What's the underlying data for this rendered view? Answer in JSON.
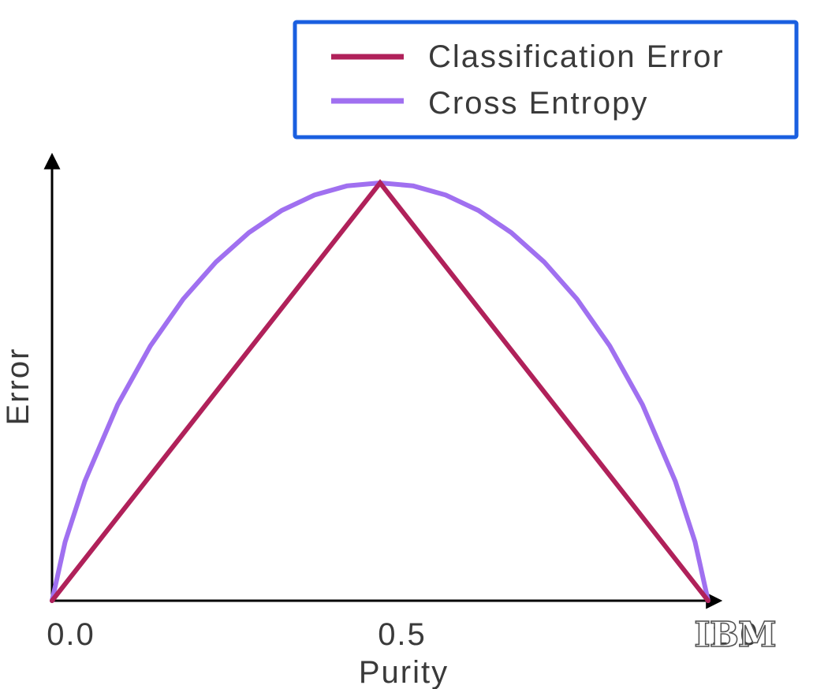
{
  "chart_data": {
    "type": "line",
    "title": "",
    "xlabel": "Purity",
    "ylabel": "Error",
    "xlim": [
      0,
      1
    ],
    "ylim": [
      0,
      1.08
    ],
    "x_ticks": [
      "0.0",
      "0.5",
      "1.0"
    ],
    "grid": false,
    "legend_position": "top-right",
    "series": [
      {
        "name": "Classification Error",
        "color": "#b0215a",
        "x": [
          0.0,
          0.5,
          1.0
        ],
        "y": [
          0.0,
          1.0,
          0.0
        ]
      },
      {
        "name": "Cross Entropy",
        "color": "#a070f0",
        "x": [
          0.0,
          0.02,
          0.05,
          0.1,
          0.15,
          0.2,
          0.25,
          0.3,
          0.35,
          0.4,
          0.45,
          0.5,
          0.55,
          0.6,
          0.65,
          0.7,
          0.75,
          0.8,
          0.85,
          0.9,
          0.95,
          0.98,
          1.0
        ],
        "y": [
          0.0,
          0.141,
          0.286,
          0.469,
          0.61,
          0.722,
          0.811,
          0.881,
          0.934,
          0.971,
          0.993,
          1.0,
          0.993,
          0.971,
          0.934,
          0.881,
          0.811,
          0.722,
          0.61,
          0.469,
          0.286,
          0.141,
          0.0
        ]
      }
    ]
  },
  "logo": {
    "text": "IBM",
    "name": "ibm-logo"
  }
}
